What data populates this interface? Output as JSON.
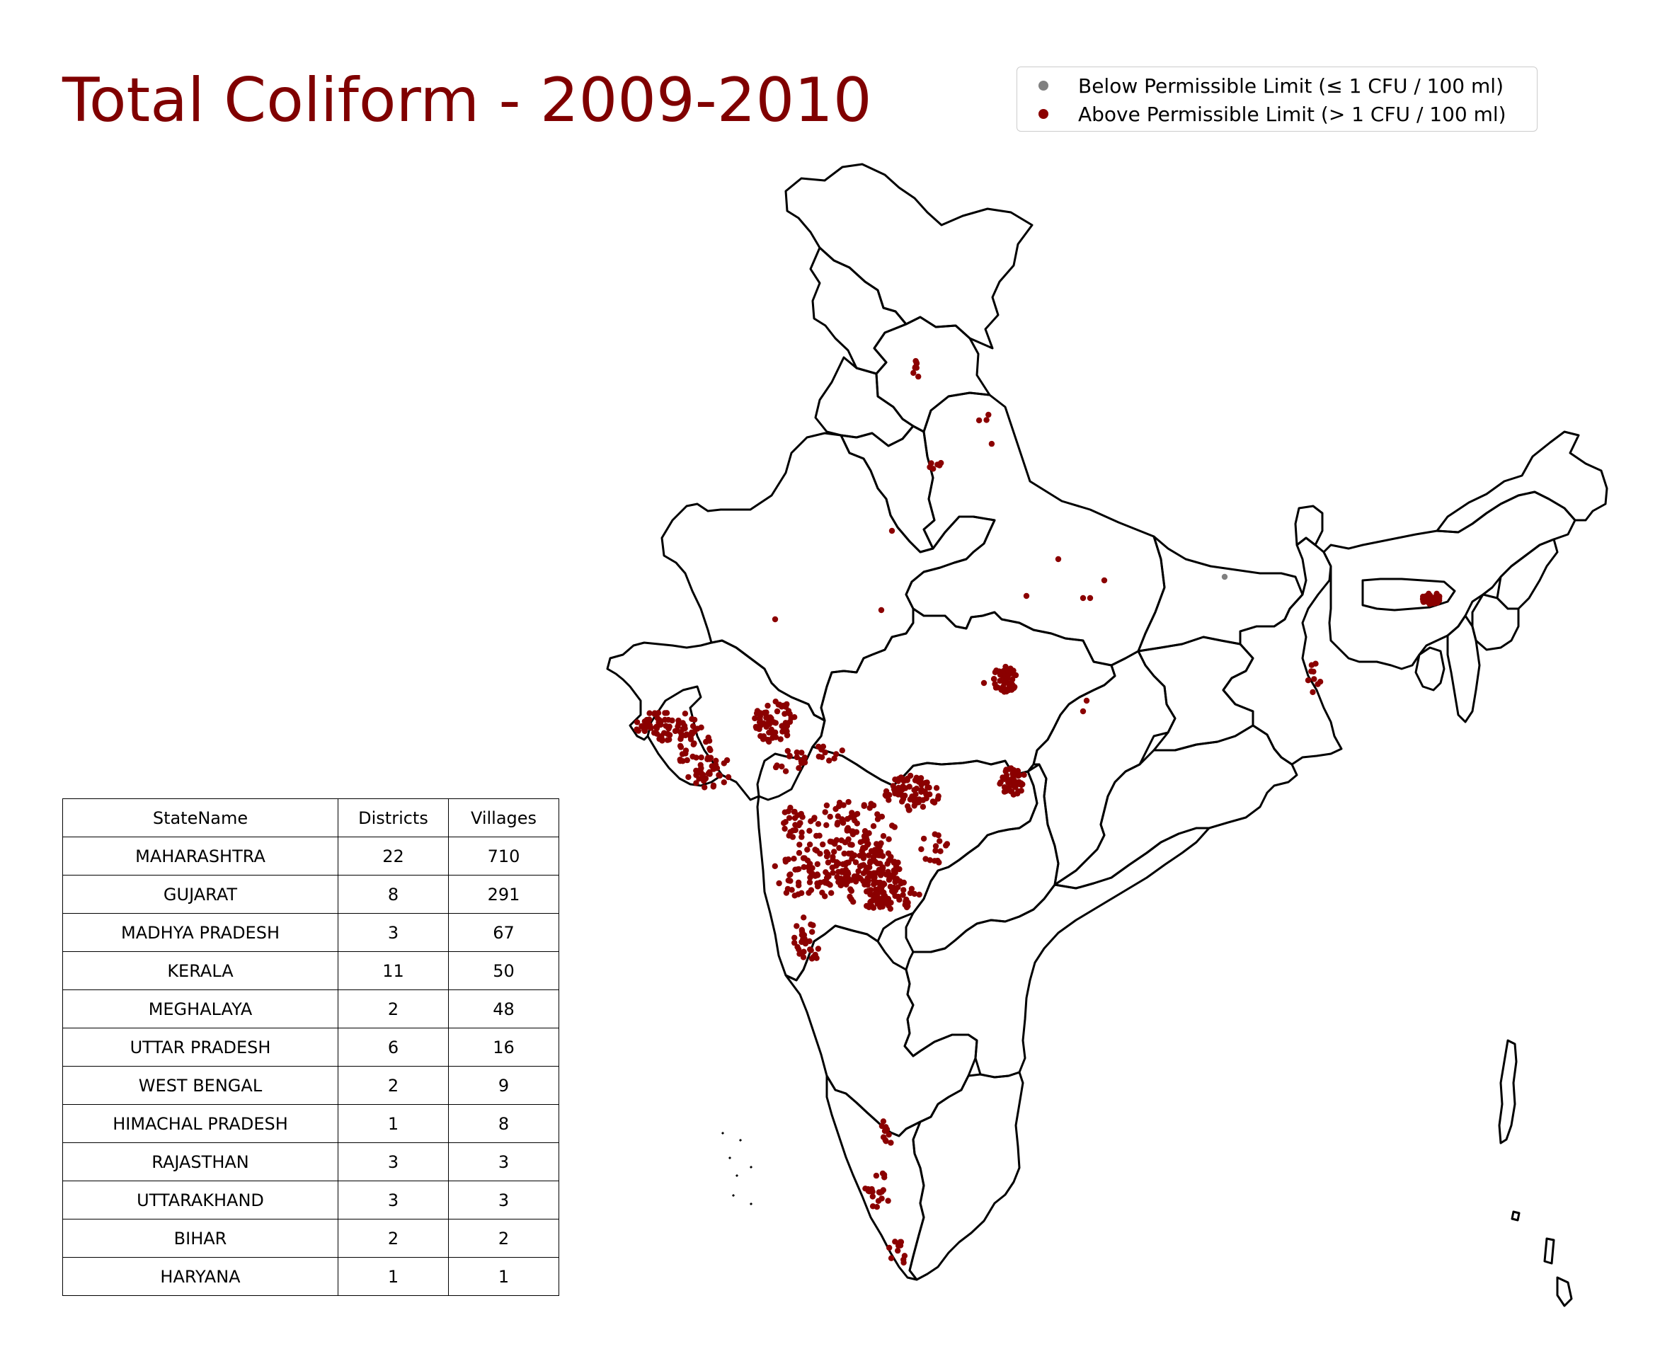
{
  "title": "Total Coliform - 2009-2010",
  "legend": {
    "below": {
      "label": "Below Permissible Limit (≤ 1 CFU / 100 ml)",
      "color": "#808080"
    },
    "above": {
      "label": "Above Permissible Limit (> 1 CFU / 100 ml)",
      "color": "#8b0000"
    }
  },
  "table": {
    "headers": [
      "StateName",
      "Districts",
      "Villages"
    ],
    "rows": [
      [
        "MAHARASHTRA",
        "22",
        "710"
      ],
      [
        "GUJARAT",
        "8",
        "291"
      ],
      [
        "MADHYA PRADESH",
        "3",
        "67"
      ],
      [
        "KERALA",
        "11",
        "50"
      ],
      [
        "MEGHALAYA",
        "2",
        "48"
      ],
      [
        "UTTAR PRADESH",
        "6",
        "16"
      ],
      [
        "WEST BENGAL",
        "2",
        "9"
      ],
      [
        "HIMACHAL PRADESH",
        "1",
        "8"
      ],
      [
        "RAJASTHAN",
        "3",
        "3"
      ],
      [
        "UTTARAKHAND",
        "3",
        "3"
      ],
      [
        "BIHAR",
        "2",
        "2"
      ],
      [
        "HARYANA",
        "1",
        "1"
      ]
    ]
  }
}
